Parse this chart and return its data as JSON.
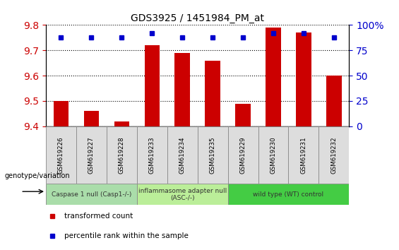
{
  "title": "GDS3925 / 1451984_PM_at",
  "samples": [
    "GSM619226",
    "GSM619227",
    "GSM619228",
    "GSM619233",
    "GSM619234",
    "GSM619235",
    "GSM619229",
    "GSM619230",
    "GSM619231",
    "GSM619232"
  ],
  "transformed_count": [
    9.5,
    9.46,
    9.42,
    9.72,
    9.69,
    9.66,
    9.49,
    9.79,
    9.77,
    9.6
  ],
  "percentile_rank": [
    88,
    88,
    88,
    92,
    88,
    88,
    88,
    92,
    92,
    88
  ],
  "ylim_left": [
    9.4,
    9.8
  ],
  "ylim_right": [
    0,
    100
  ],
  "yticks_left": [
    9.4,
    9.5,
    9.6,
    9.7,
    9.8
  ],
  "yticks_right": [
    0,
    25,
    50,
    75,
    100
  ],
  "bar_color": "#cc0000",
  "dot_color": "#0000cc",
  "bar_bottom": 9.4,
  "groups": [
    {
      "label": "Caspase 1 null (Casp1-/-)",
      "start": 0,
      "end": 3,
      "color": "#aaddaa"
    },
    {
      "label": "inflammasome adapter null\n(ASC-/-)",
      "start": 3,
      "end": 6,
      "color": "#bbee99"
    },
    {
      "label": "wild type (WT) control",
      "start": 6,
      "end": 10,
      "color": "#44cc44"
    }
  ],
  "legend_items": [
    {
      "label": "transformed count",
      "color": "#cc0000"
    },
    {
      "label": "percentile rank within the sample",
      "color": "#0000cc"
    }
  ],
  "genotype_label": "genotype/variation",
  "background_color": "#ffffff",
  "grid_color": "#000000",
  "tick_label_color_left": "#cc0000",
  "tick_label_color_right": "#0000cc",
  "sample_box_color": "#dddddd",
  "sample_box_edge": "#888888"
}
